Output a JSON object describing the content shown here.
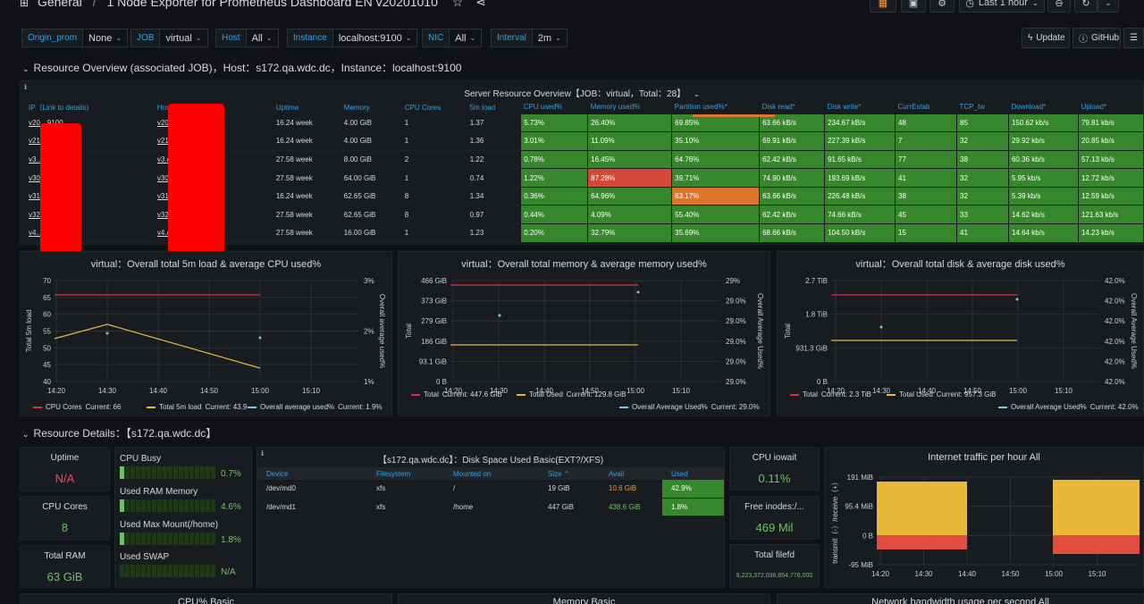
{
  "topbar": {
    "breadcrumb_root": "General",
    "breadcrumb_sep": "/",
    "dashboard_title": "1 Node Exporter for Prometheus Dashboard EN v20201010",
    "time_range": "Last 1 hour"
  },
  "variables": [
    {
      "label": "Origin_prom",
      "value": "None"
    },
    {
      "label": "JOB",
      "value": "virtual"
    },
    {
      "label": "Host",
      "value": "All"
    },
    {
      "label": "Instance",
      "value": "localhost:9100"
    },
    {
      "label": "NIC",
      "value": "All"
    },
    {
      "label": "Interval",
      "value": "2m"
    }
  ],
  "buttons": {
    "update": "Update",
    "github": "GitHub"
  },
  "row1": {
    "title": "Resource Overview (associated JOB)，Host：s172.qa.wdc.dc，Instance：localhost:9100"
  },
  "server_table": {
    "title": "Server Resource Overview【JOB：virtual，Total：28】",
    "columns": [
      "IP（Link to details)",
      "Host",
      "Uptime",
      "Memory",
      "CPU Cores",
      "5m load",
      "CPU used%",
      "Memory used%",
      "Partition used%*",
      "Disk read*",
      "Disk write*",
      "CurrEstab",
      "TCP_tw",
      "Download*",
      "Upload*"
    ],
    "rows": [
      {
        "ip": "v20…9100",
        "host": "v20",
        "uptime": "16.24 week",
        "memory": "4.00 GiB",
        "cores": "1",
        "load": "1.37",
        "cpu": "5.73%",
        "mem": "26.40%",
        "part": "69.85%",
        "dread": "63.66 kB/s",
        "dwrite": "234.67 kB/s",
        "estab": "48",
        "tw": "85",
        "down": "150.62 kb/s",
        "up": "79.81 kb/s"
      },
      {
        "ip": "v21…9100",
        "host": "v21",
        "uptime": "16.24 week",
        "memory": "4.00 GiB",
        "cores": "1",
        "load": "1.36",
        "cpu": "3.01%",
        "mem": "11.09%",
        "part": "35.10%",
        "dread": "69.91 kB/s",
        "dwrite": "227.39 kB/s",
        "estab": "7",
        "tw": "32",
        "down": "29.92 kb/s",
        "up": "20.85 kb/s"
      },
      {
        "ip": "v3.…100",
        "host": "v3.c",
        "uptime": "27.58 week",
        "memory": "8.00 GiB",
        "cores": "2",
        "load": "1.22",
        "cpu": "0.78%",
        "mem": "16.45%",
        "part": "64.76%",
        "dread": "62.42 kB/s",
        "dwrite": "91.65 kB/s",
        "estab": "77",
        "tw": "38",
        "down": "60.36 kb/s",
        "up": "57.13 kb/s"
      },
      {
        "ip": "v30…100",
        "host": "v30",
        "uptime": "27.58 week",
        "memory": "64.00 GiB",
        "cores": "1",
        "load": "0.74",
        "cpu": "1.22%",
        "mem": "87.28%",
        "part": "39.71%",
        "dread": "74.90 kB/s",
        "dwrite": "193.69 kB/s",
        "estab": "41",
        "tw": "32",
        "down": "5.95 kb/s",
        "up": "12.72 kb/s"
      },
      {
        "ip": "v31…100",
        "host": "v31",
        "uptime": "16.24 week",
        "memory": "62.65 GiB",
        "cores": "8",
        "load": "1.34",
        "cpu": "0.36%",
        "mem": "64.96%",
        "part": "83.17%",
        "dread": "63.66 kB/s",
        "dwrite": "226.48 kB/s",
        "estab": "38",
        "tw": "32",
        "down": "5.39 kb/s",
        "up": "12.59 kb/s"
      },
      {
        "ip": "v32…100",
        "host": "v32",
        "uptime": "27.58 week",
        "memory": "62.65 GiB",
        "cores": "8",
        "load": "0.97",
        "cpu": "0.44%",
        "mem": "4.09%",
        "part": "55.40%",
        "dread": "62.42 kB/s",
        "dwrite": "74.66 kB/s",
        "estab": "45",
        "tw": "33",
        "down": "14.62 kb/s",
        "up": "121.63 kb/s"
      },
      {
        "ip": "v4.…100",
        "host": "v4.c",
        "uptime": "27.58 week",
        "memory": "16.00 GiB",
        "cores": "1",
        "load": "1.23",
        "cpu": "0.20%",
        "mem": "32.79%",
        "part": "35.69%",
        "dread": "68.66 kB/s",
        "dwrite": "104.50 kB/s",
        "estab": "15",
        "tw": "41",
        "down": "14.64 kb/s",
        "up": "14.23 kb/s"
      }
    ]
  },
  "charts": {
    "cpu": {
      "title": "virtual：Overall total 5m load & average CPU used%",
      "ylabel_left": "Total 5m load",
      "ylabel_right": "Overall average used%",
      "left_ticks": [
        "70",
        "65",
        "60",
        "55",
        "50",
        "45",
        "40"
      ],
      "right_ticks": [
        "3%",
        "2%",
        "1%"
      ],
      "x_ticks": [
        "14:20",
        "14:30",
        "14:40",
        "14:50",
        "15:00",
        "15:10"
      ],
      "legend": [
        {
          "name": "CPU Cores",
          "current": "Current: 66",
          "color": "#e02f44"
        },
        {
          "name": "Total 5m load",
          "current": "Current: 43.9",
          "color": "#eab839"
        },
        {
          "name": "Overall average used%",
          "current": "Current: 1.9%",
          "color": "#6ed0e0"
        }
      ]
    },
    "mem": {
      "title": "virtual：Overall total memory & average memory used%",
      "ylabel_left": "Total",
      "ylabel_right": "Overall Average Used%",
      "left_ticks": [
        "466 GiB",
        "373 GiB",
        "279 GiB",
        "186 GiB",
        "93.1 GiB",
        "0 B"
      ],
      "right_ticks": [
        "29%",
        "29.0%",
        "29.0%",
        "29.0%",
        "29.0%",
        "29.0%"
      ],
      "x_ticks": [
        "14:20",
        "14:30",
        "14:40",
        "14:50",
        "15:00",
        "15:10"
      ],
      "legend": [
        {
          "name": "Total",
          "current": "Current: 447.6 GiB",
          "color": "#e02f44"
        },
        {
          "name": "Total Used",
          "current": "Current: 129.8 GiB",
          "color": "#eab839"
        },
        {
          "name": "Overall Average Used%",
          "current": "Current: 29.0%",
          "color": "#6ed0e0"
        }
      ]
    },
    "disk": {
      "title": "virtual：Overall total disk & average disk used%",
      "ylabel_left": "Total",
      "ylabel_right": "Overall Average Used%",
      "left_ticks": [
        "2.7 TiB",
        "1.8 TiB",
        "931.3 GiB",
        "0 B"
      ],
      "right_ticks": [
        "42.0%",
        "42.0%",
        "42.0%",
        "42.0%",
        "42.0%",
        "42.0%"
      ],
      "x_ticks": [
        "14:20",
        "14:30",
        "14:40",
        "14:50",
        "15:00",
        "15:10"
      ],
      "legend": [
        {
          "name": "Total",
          "current": "Current: 2.3 TiB",
          "color": "#e02f44"
        },
        {
          "name": "Total Used",
          "current": "Current: 957.3 GiB",
          "color": "#eab839"
        },
        {
          "name": "Overall Average Used%",
          "current": "Current: 42.0%",
          "color": "#6ed0e0"
        }
      ]
    }
  },
  "row2": {
    "title": "Resource Details：【s172.qa.wdc.dc】"
  },
  "stats": {
    "uptime": {
      "title": "Uptime",
      "value": "N/A",
      "color": "#f2495c"
    },
    "cores": {
      "title": "CPU Cores",
      "value": "8",
      "color": "#73bf69"
    },
    "ram": {
      "title": "Total RAM",
      "value": "63 GiB",
      "color": "#73bf69"
    },
    "iowait": {
      "title": "CPU iowait",
      "value": "0.11%",
      "color": "#73bf69"
    },
    "inodes": {
      "title": "Free inodes:/...",
      "value": "469 Mil",
      "color": "#73bf69"
    },
    "filefd": {
      "title": "Total filefd",
      "value": "9,223,372,036,854,776,000",
      "color": "#73bf69"
    }
  },
  "bargauges": [
    {
      "label": "CPU Busy",
      "value": "0.7%",
      "fraction": 0.007
    },
    {
      "label": "Used RAM Memory",
      "value": "4.6%",
      "fraction": 0.046
    },
    {
      "label": "Used Max Mount(/home)",
      "value": "1.8%",
      "fraction": 0.018
    },
    {
      "label": "Used SWAP",
      "value": "N/A",
      "fraction": 0
    }
  ],
  "disk_table": {
    "title": "【s172.qa.wdc.dc】：Disk Space Used Basic(EXT?/XFS)",
    "columns": [
      "Device",
      "Filesystem",
      "Mounted on",
      "Size ⌃",
      "Avail",
      "Used"
    ],
    "rows": [
      {
        "device": "/dev/md0",
        "fs": "xfs",
        "mount": "/",
        "size": "19 GiB",
        "avail": "10.6 GiB",
        "avail_color": "#ff9830",
        "used": "42.9%"
      },
      {
        "device": "/dev/md1",
        "fs": "xfs",
        "mount": "/home",
        "size": "447 GiB",
        "avail": "438.6 GiB",
        "avail_color": "#73bf69",
        "used": "1.8%"
      }
    ]
  },
  "traffic": {
    "title": "Internet traffic per hour All",
    "ylabel": "transmit（-）/receive（+）",
    "y_ticks": [
      "191 MiB",
      "95.4 MiB",
      "0 B",
      "-95 MiB"
    ],
    "x_ticks": [
      "14:20",
      "14:30",
      "14:40",
      "14:50",
      "15:00",
      "15:10"
    ]
  },
  "bottom_titles": [
    "CPU% Basic",
    "Memory Basic",
    "Network bandwidth usage per second All"
  ],
  "colors": {
    "bg": "#111217",
    "panel": "#181b1f",
    "green": "#37872d",
    "red": "#d44a3a",
    "orange": "#e0752d",
    "link": "#33a2e5"
  }
}
